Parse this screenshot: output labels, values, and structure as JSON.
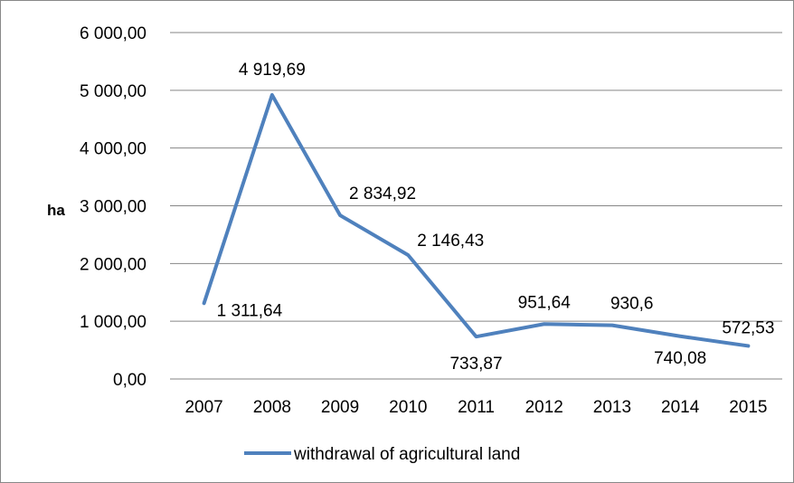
{
  "chart_data": {
    "type": "line",
    "ylabel": "ha",
    "categories": [
      "2007",
      "2008",
      "2009",
      "2010",
      "2011",
      "2012",
      "2013",
      "2014",
      "2015"
    ],
    "series": [
      {
        "name": "withdrawal of agricultural land",
        "values": [
          1311.64,
          4919.69,
          2834.92,
          2146.43,
          733.87,
          951.64,
          930.6,
          740.08,
          572.53
        ],
        "labels": [
          "1 311,64",
          "4 919,69",
          "2 834,92",
          "2 146,43",
          "733,87",
          "951,64",
          "930,6",
          "740,08",
          "572,53"
        ],
        "color": "#4F81BD"
      }
    ],
    "y_ticks": [
      "0,00",
      "1 000,00",
      "2 000,00",
      "3 000,00",
      "4 000,00",
      "5 000,00",
      "6 000,00"
    ],
    "ylim": [
      0,
      6000
    ],
    "grid": true,
    "legend_position": "bottom"
  }
}
